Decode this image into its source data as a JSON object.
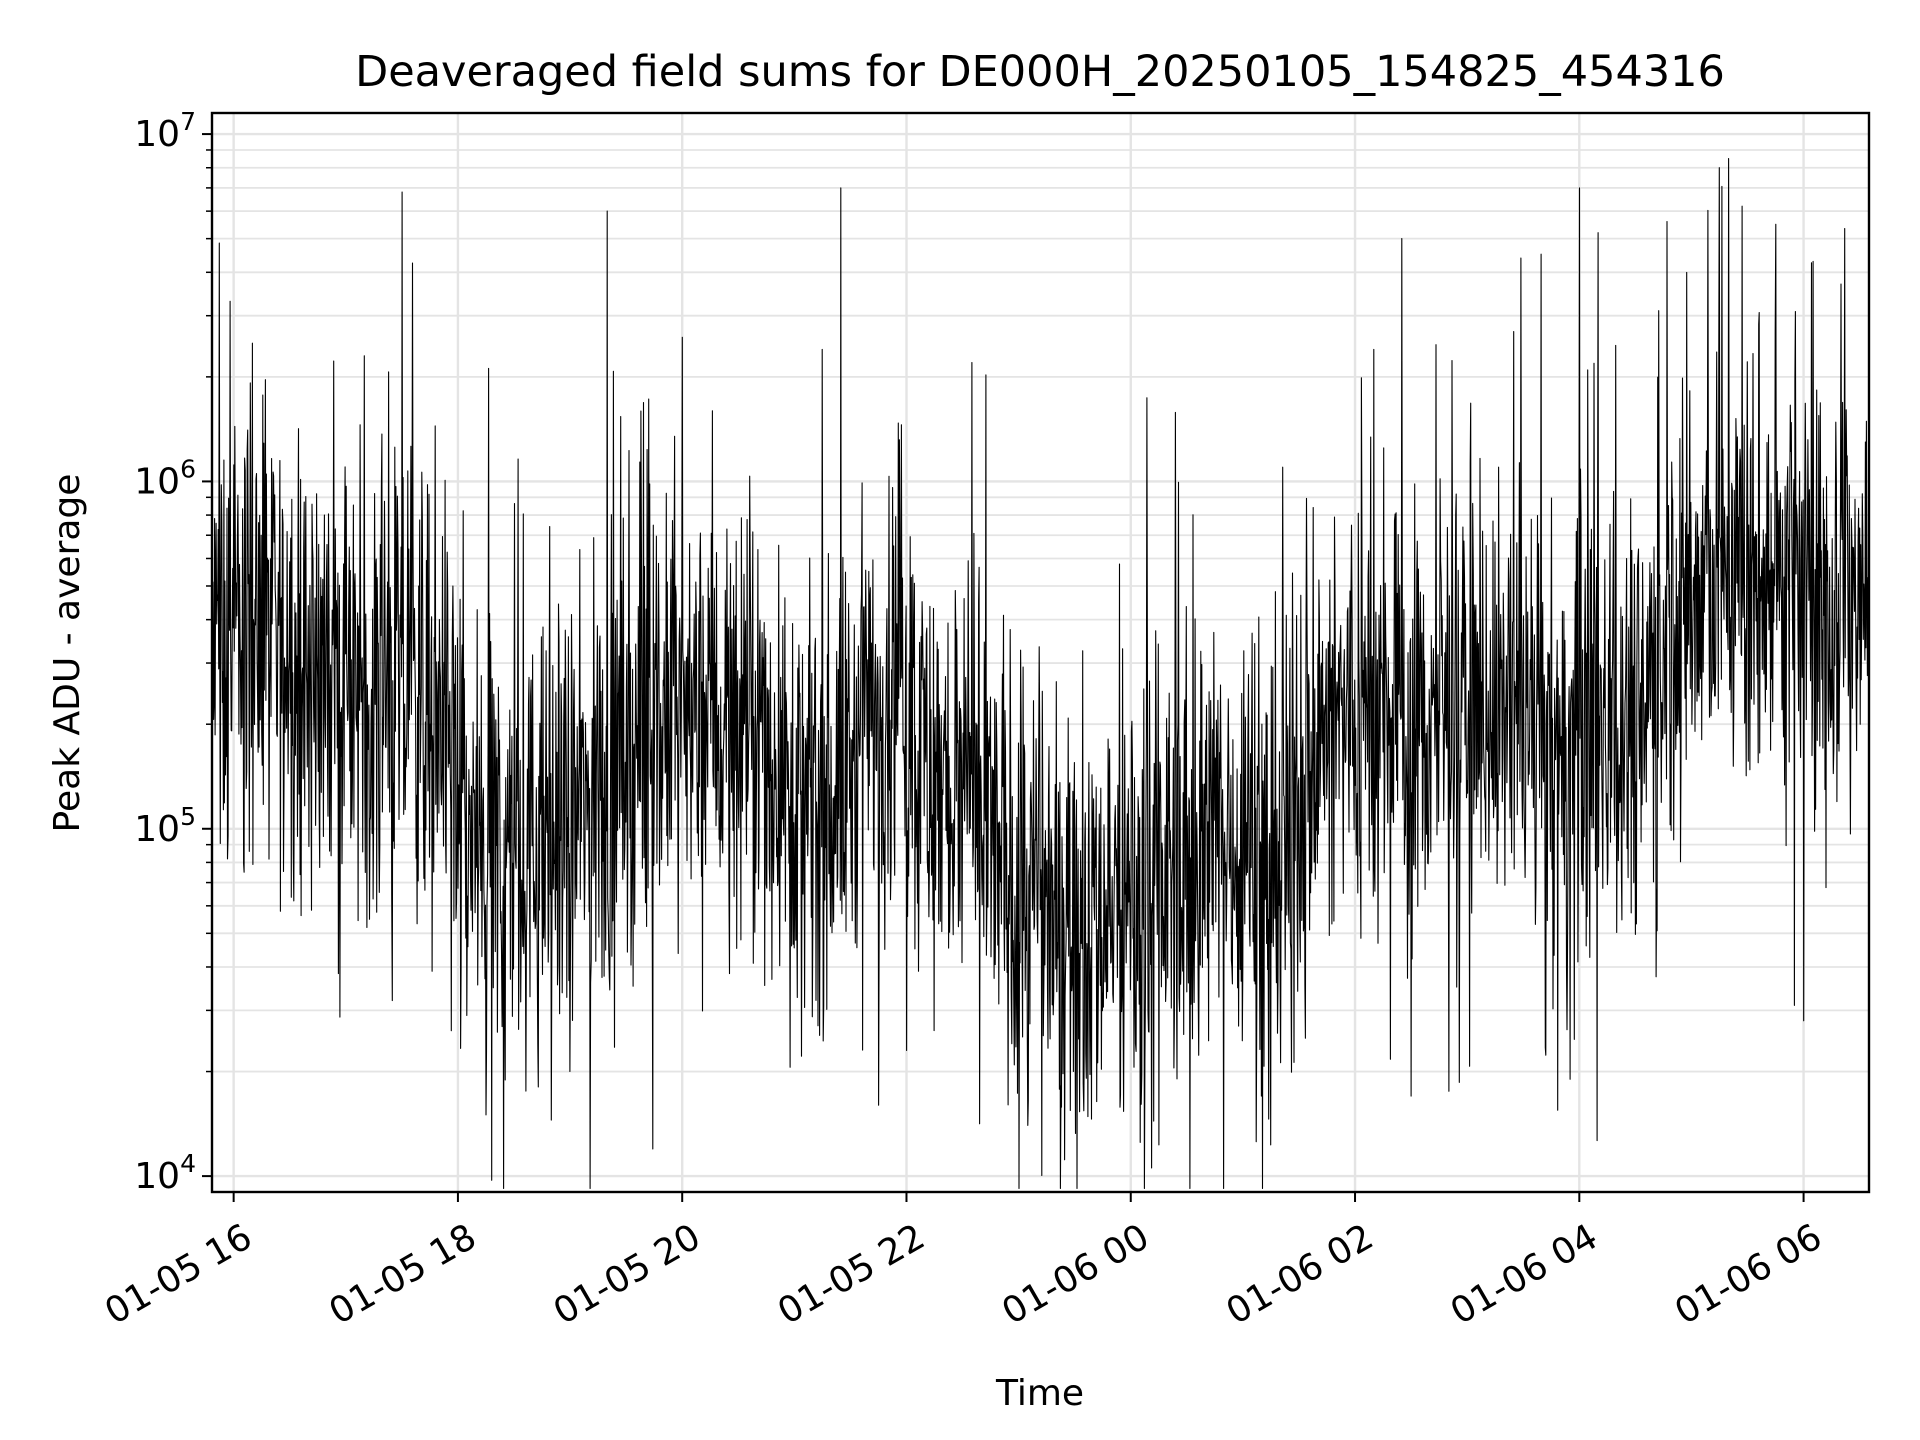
{
  "chart_data": {
    "type": "line",
    "title": "Deaveraged field sums for DE000H_20250105_154825_454316",
    "xlabel": "Time",
    "ylabel": "Peak ADU - average",
    "yscale": "log",
    "ylim": [
      9000,
      11500000
    ],
    "xlim": [
      "2025-01-05T15:48:25",
      "2025-01-06T06:35:00"
    ],
    "x_ticks": [
      {
        "value": "2025-01-05T16:00:00",
        "label": "01-05 16"
      },
      {
        "value": "2025-01-05T18:00:00",
        "label": "01-05 18"
      },
      {
        "value": "2025-01-05T20:00:00",
        "label": "01-05 20"
      },
      {
        "value": "2025-01-05T22:00:00",
        "label": "01-05 22"
      },
      {
        "value": "2025-01-06T00:00:00",
        "label": "01-06 00"
      },
      {
        "value": "2025-01-06T02:00:00",
        "label": "01-06 02"
      },
      {
        "value": "2025-01-06T04:00:00",
        "label": "01-06 04"
      },
      {
        "value": "2025-01-06T06:00:00",
        "label": "01-06 06"
      }
    ],
    "y_ticks": [
      {
        "value": 10000,
        "base": "10",
        "exp": "4"
      },
      {
        "value": 100000,
        "base": "10",
        "exp": "5"
      },
      {
        "value": 1000000,
        "base": "10",
        "exp": "6"
      },
      {
        "value": 10000000,
        "base": "10",
        "exp": "7"
      }
    ],
    "grid": true,
    "series": [
      {
        "color": "#000000",
        "points": [
          [
            "2025-01-05T15:48:25",
            300000
          ],
          [
            "2025-01-05T16:00:00",
            350000
          ],
          [
            "2025-01-05T16:20:00",
            330000
          ],
          [
            "2025-01-05T16:40:00",
            300000
          ],
          [
            "2025-01-05T17:00:00",
            260000
          ],
          [
            "2025-01-05T17:20:00",
            240000
          ],
          [
            "2025-01-05T17:40:00",
            250000
          ],
          [
            "2025-01-05T17:55:00",
            210000
          ],
          [
            "2025-01-05T18:05:00",
            90000
          ],
          [
            "2025-01-05T18:30:00",
            80000
          ],
          [
            "2025-01-05T19:00:00",
            100000
          ],
          [
            "2025-01-05T19:30:00",
            160000
          ],
          [
            "2025-01-05T20:00:00",
            220000
          ],
          [
            "2025-01-05T20:30:00",
            200000
          ],
          [
            "2025-01-05T20:55:00",
            150000
          ],
          [
            "2025-01-05T21:05:00",
            100000
          ],
          [
            "2025-01-05T21:30:00",
            150000
          ],
          [
            "2025-01-05T21:55:00",
            300000
          ],
          [
            "2025-01-05T22:10:00",
            150000
          ],
          [
            "2025-01-05T22:40:00",
            100000
          ],
          [
            "2025-01-05T23:00:00",
            70000
          ],
          [
            "2025-01-05T23:30:00",
            55000
          ],
          [
            "2025-01-06T00:00:00",
            60000
          ],
          [
            "2025-01-06T00:30:00",
            80000
          ],
          [
            "2025-01-06T01:00:00",
            100000
          ],
          [
            "2025-01-06T01:20:00",
            80000
          ],
          [
            "2025-01-06T01:40:00",
            170000
          ],
          [
            "2025-01-06T02:00:00",
            220000
          ],
          [
            "2025-01-06T02:30:00",
            180000
          ],
          [
            "2025-01-06T03:00:00",
            250000
          ],
          [
            "2025-01-06T03:30:00",
            200000
          ],
          [
            "2025-01-06T03:50:00",
            140000
          ],
          [
            "2025-01-06T04:00:00",
            180000
          ],
          [
            "2025-01-06T04:30:00",
            220000
          ],
          [
            "2025-01-06T04:50:00",
            400000
          ],
          [
            "2025-01-06T05:20:00",
            550000
          ],
          [
            "2025-01-06T05:50:00",
            500000
          ],
          [
            "2025-01-06T06:10:00",
            450000
          ],
          [
            "2025-01-06T06:35:00",
            500000
          ]
        ],
        "peaks": [
          [
            "2025-01-05T19:20:00",
            6000000
          ],
          [
            "2025-01-05T21:25:00",
            7000000
          ],
          [
            "2025-01-05T21:15:00",
            2400000
          ],
          [
            "2025-01-05T20:00:00",
            2600000
          ],
          [
            "2025-01-05T22:35:00",
            2800000
          ],
          [
            "2025-01-05T17:10:00",
            2300000
          ],
          [
            "2025-01-05T15:58:00",
            3300000
          ],
          [
            "2025-01-05T16:10:00",
            2500000
          ],
          [
            "2025-01-06T02:25:00",
            5000000
          ],
          [
            "2025-01-06T03:25:00",
            2700000
          ],
          [
            "2025-01-06T04:00:00",
            7000000
          ],
          [
            "2025-01-06T04:10:00",
            5200000
          ],
          [
            "2025-01-06T04:47:00",
            5600000
          ],
          [
            "2025-01-06T05:15:00",
            8000000
          ],
          [
            "2025-01-06T05:20:00",
            8500000
          ],
          [
            "2025-01-06T05:27:00",
            6200000
          ],
          [
            "2025-01-06T05:45:00",
            5500000
          ],
          [
            "2025-01-06T06:05:00",
            4300000
          ],
          [
            "2025-01-06T06:20:00",
            3700000
          ],
          [
            "2025-01-05T22:35:00",
            2200000
          ],
          [
            "2025-01-06T02:10:00",
            2400000
          ]
        ],
        "dips": [
          [
            "2025-01-05T18:15:00",
            15000
          ],
          [
            "2025-01-05T18:50:00",
            14500
          ],
          [
            "2025-01-05T23:05:00",
            14000
          ],
          [
            "2025-01-05T21:45:00",
            16000
          ],
          [
            "2025-01-06T00:05:00",
            12500
          ],
          [
            "2025-01-06T00:15:00",
            12300
          ],
          [
            "2025-01-06T01:15:00",
            12300
          ],
          [
            "2025-01-06T01:10:00",
            17000
          ],
          [
            "2025-01-05T17:25:00",
            32000
          ],
          [
            "2025-01-06T05:55:00",
            31000
          ],
          [
            "2025-01-06T06:00:00",
            28000
          ],
          [
            "2025-01-05T19:00:00",
            20000
          ],
          [
            "2025-01-05T22:00:00",
            23000
          ],
          [
            "2025-01-06T03:55:00",
            19000
          ],
          [
            "2025-01-06T02:30:00",
            17000
          ]
        ]
      }
    ]
  }
}
